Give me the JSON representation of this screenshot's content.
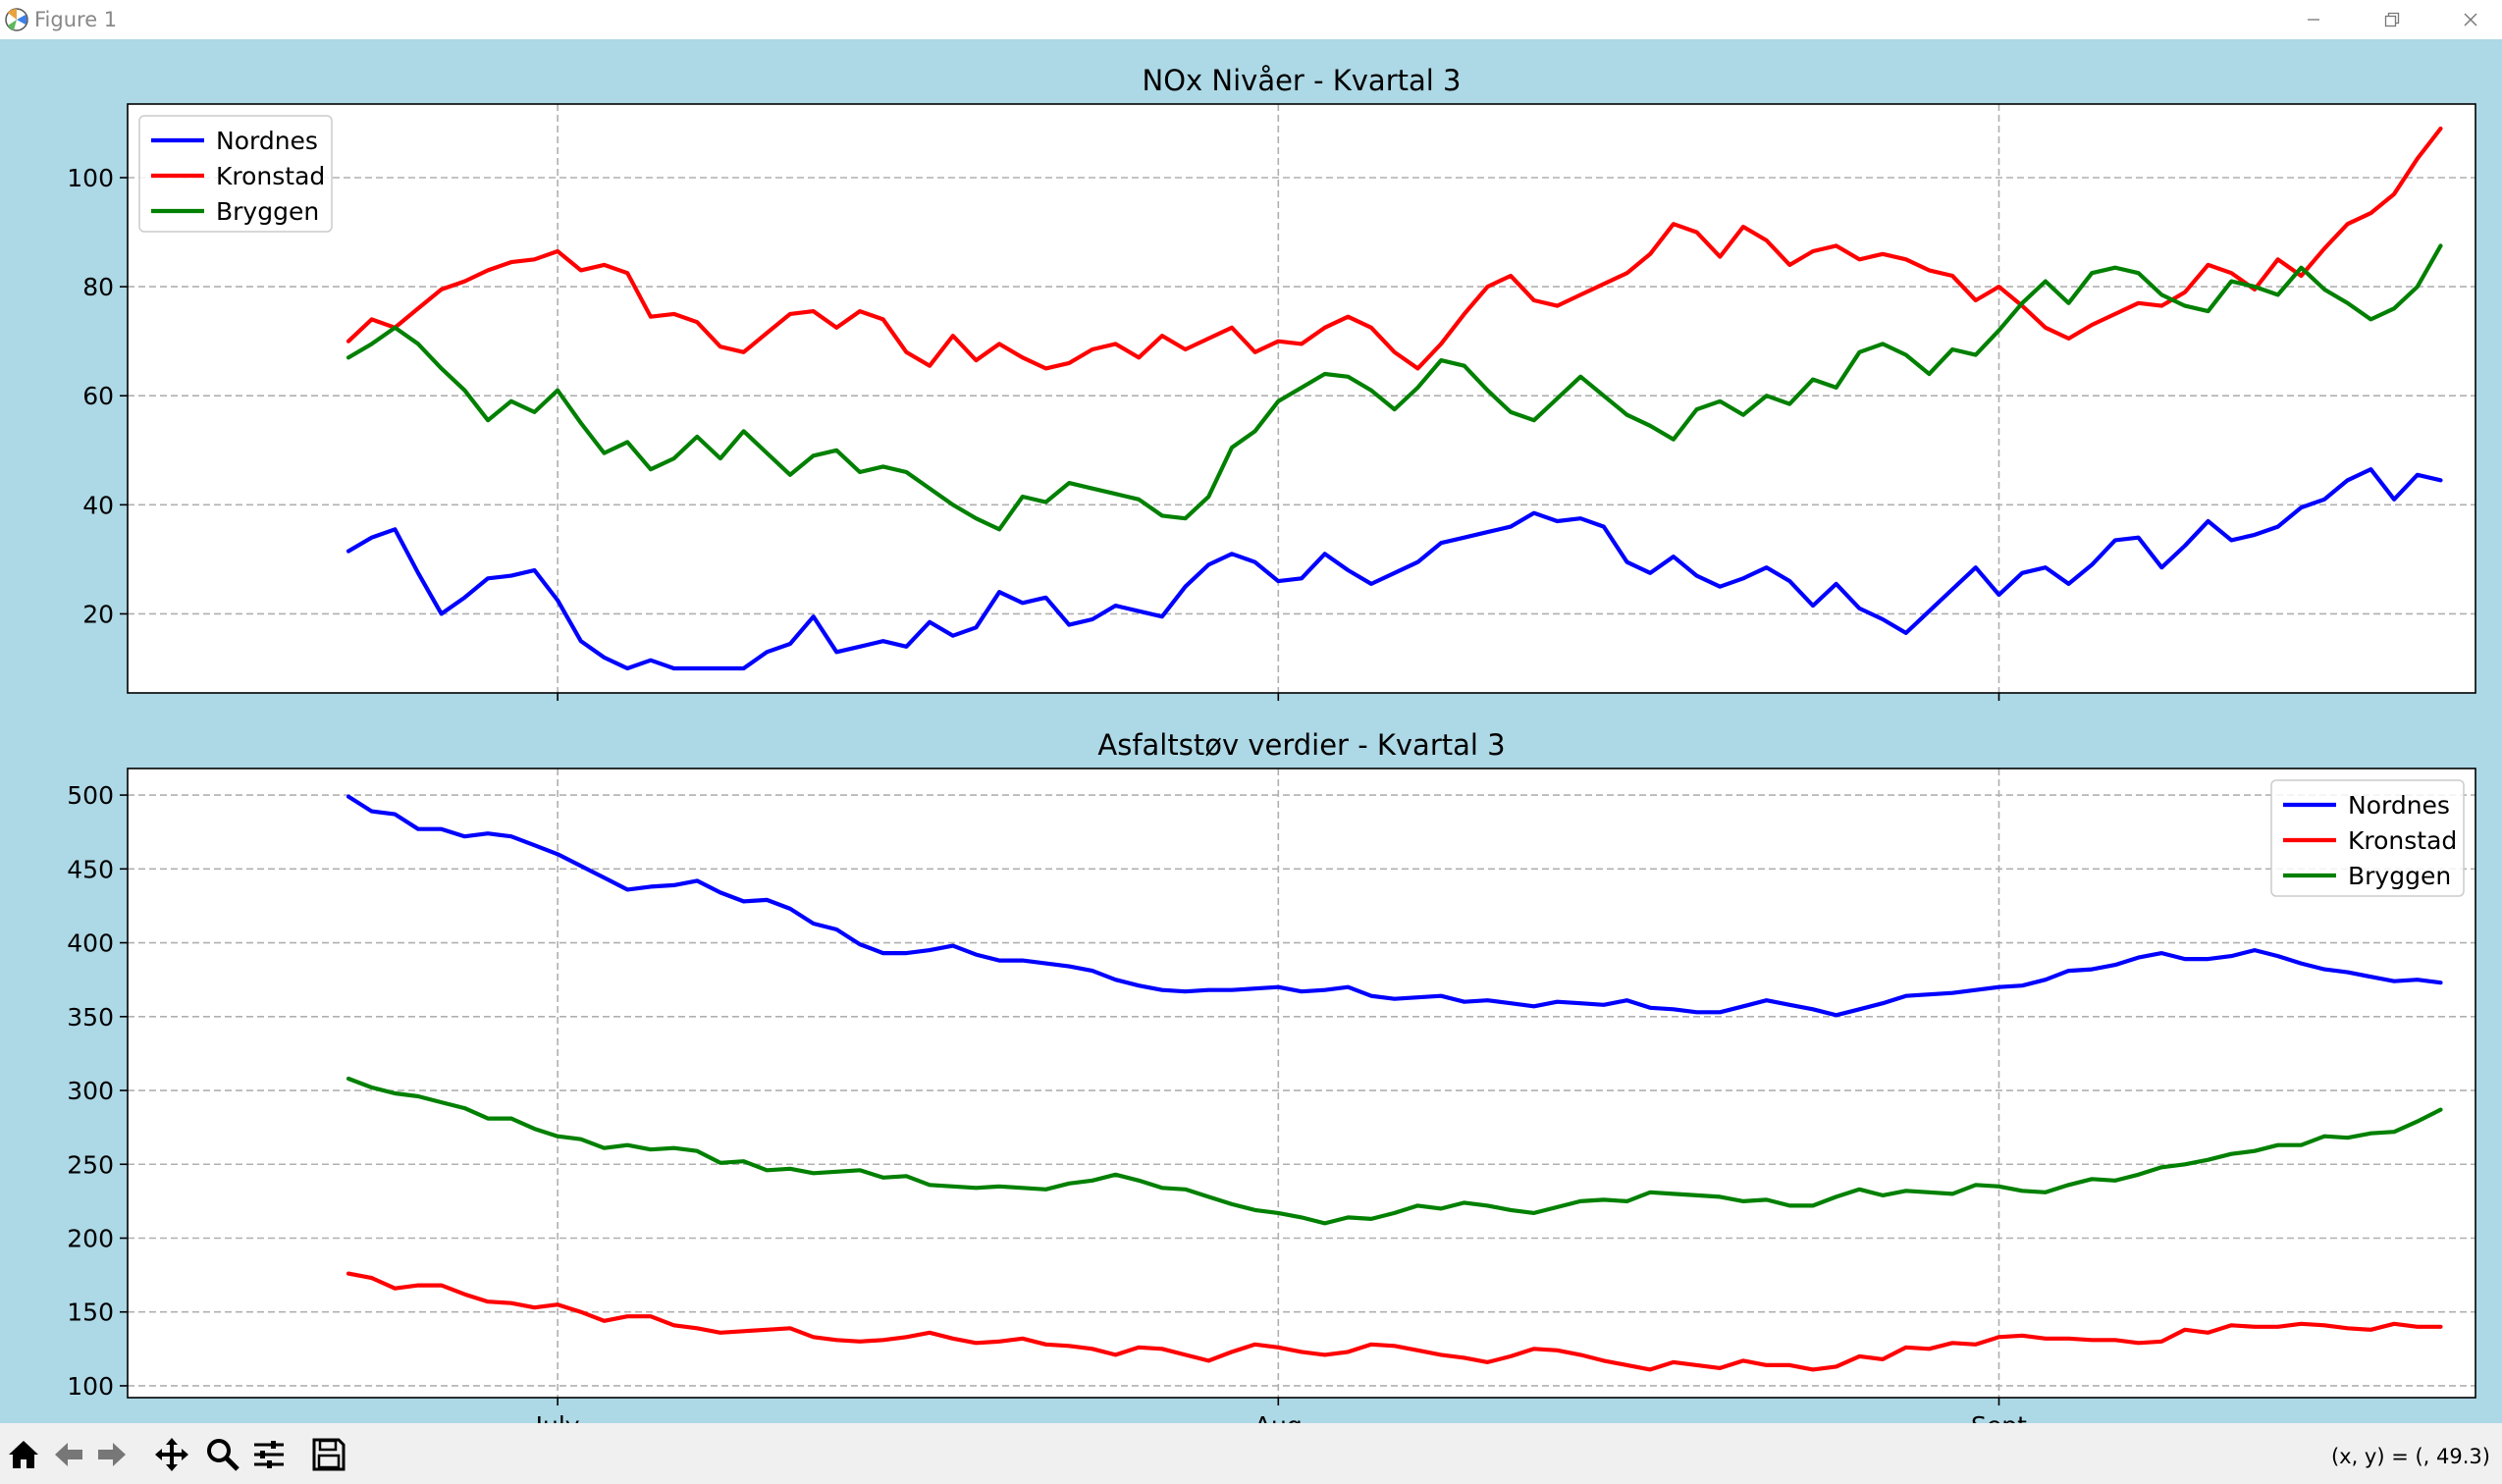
{
  "window": {
    "title": "Figure 1"
  },
  "toolbar": {
    "buttons": [
      "home-icon",
      "back-arrow-icon",
      "forward-arrow-icon",
      "pan-icon",
      "zoom-icon",
      "subplots-icon",
      "save-icon"
    ],
    "coords_text": "(x, y) = (, 49.3)"
  },
  "colors": {
    "figure_bg": "#add8e6",
    "Nordnes": "#0000ff",
    "Kronstad": "#ff0000",
    "Bryggen": "#008000"
  },
  "chart_data": [
    {
      "type": "line",
      "title": "NOx Nivåer - Kvartal 3",
      "xlabel": "",
      "ylabel": "",
      "x_unit": "day index from first point (dates not printed)",
      "xlim": [
        -9.5,
        91.5
      ],
      "ylim": [
        5.5,
        113.5
      ],
      "yticks": [
        20,
        40,
        60,
        80,
        100
      ],
      "xticks": [
        {
          "pos": 9,
          "label": "July"
        },
        {
          "pos": 40,
          "label": "Aug"
        },
        {
          "pos": 71,
          "label": "Sept"
        }
      ],
      "grid": true,
      "legend": "top-left",
      "series": [
        {
          "name": "Nordnes",
          "values": [
            31.5,
            34,
            35.5,
            27.5,
            20,
            23,
            26.5,
            27,
            28,
            22.5,
            15,
            12,
            10,
            11.5,
            10,
            10,
            10,
            10,
            13,
            14.5,
            19.5,
            13,
            14,
            15,
            14,
            18.5,
            16,
            17.5,
            24,
            22,
            23,
            18,
            19,
            21.5,
            20.5,
            19.5,
            25,
            29,
            31,
            29.5,
            26,
            26.5,
            31,
            28,
            25.5,
            27.5,
            29.5,
            33,
            34,
            35,
            36,
            38.5,
            37,
            37.5,
            36,
            29.5,
            27.5,
            30.5,
            27,
            25,
            26.5,
            28.5,
            26,
            21.5,
            25.5,
            21,
            19,
            16.5,
            20.5,
            24.5,
            28.5,
            23.5,
            27.5,
            28.5,
            25.5,
            29,
            33.5,
            34,
            28.5,
            32.5,
            37,
            33.5,
            34.5,
            36,
            39.5,
            41,
            44.5,
            46.5,
            41,
            45.5,
            44.5
          ]
        },
        {
          "name": "Kronstad",
          "values": [
            70,
            74,
            72.5,
            76,
            79.5,
            81,
            83,
            84.5,
            85,
            86.5,
            83,
            84,
            82.5,
            74.5,
            75,
            73.5,
            69,
            68,
            71.5,
            75,
            75.5,
            72.5,
            75.5,
            74,
            68,
            65.5,
            71,
            66.5,
            69.5,
            67,
            65,
            66,
            68.5,
            69.5,
            67,
            71,
            68.5,
            70.5,
            72.5,
            68,
            70,
            69.5,
            72.5,
            74.5,
            72.5,
            68,
            65,
            69.5,
            75,
            80,
            82,
            77.5,
            76.5,
            78.5,
            80.5,
            82.5,
            86,
            91.5,
            90,
            85.5,
            91,
            88.5,
            84,
            86.5,
            87.5,
            85,
            86,
            85,
            83,
            82,
            77.5,
            80,
            76.5,
            72.5,
            70.5,
            73,
            75,
            77,
            76.5,
            79,
            84,
            82.5,
            79.5,
            85,
            82,
            87,
            91.5,
            93.5,
            97,
            103.5,
            109
          ]
        },
        {
          "name": "Bryggen",
          "values": [
            67,
            69.5,
            72.5,
            69.5,
            65,
            61,
            55.5,
            59,
            57,
            61,
            55,
            49.5,
            51.5,
            46.5,
            48.5,
            52.5,
            48.5,
            53.5,
            49.5,
            45.5,
            49,
            50,
            46,
            47,
            46,
            43,
            40,
            37.5,
            35.5,
            41.5,
            40.5,
            44,
            43,
            42,
            41,
            38,
            37.5,
            41.5,
            50.5,
            53.5,
            59,
            61.5,
            64,
            63.5,
            61,
            57.5,
            61.5,
            66.5,
            65.5,
            61,
            57,
            55.5,
            59.5,
            63.5,
            60,
            56.5,
            54.5,
            52,
            57.5,
            59,
            56.5,
            60,
            58.5,
            63,
            61.5,
            68,
            69.5,
            67.5,
            64,
            68.5,
            67.5,
            72,
            77,
            81,
            77,
            82.5,
            83.5,
            82.5,
            78.5,
            76.5,
            75.5,
            81,
            80,
            78.5,
            83.5,
            79.5,
            77,
            74,
            76,
            80,
            87.5
          ]
        }
      ]
    },
    {
      "type": "line",
      "title": "Asfaltstøv verdier - Kvartal 3",
      "xlabel": "",
      "ylabel": "",
      "x_unit": "day index from first point (dates not printed)",
      "xlim": [
        -9.5,
        91.5
      ],
      "ylim": [
        92,
        518
      ],
      "yticks": [
        100,
        150,
        200,
        250,
        300,
        350,
        400,
        450,
        500
      ],
      "xticks": [
        {
          "pos": 9,
          "label": "July"
        },
        {
          "pos": 40,
          "label": "Aug"
        },
        {
          "pos": 71,
          "label": "Sept"
        }
      ],
      "grid": true,
      "legend": "top-right",
      "series": [
        {
          "name": "Nordnes",
          "values": [
            499,
            489,
            487,
            477,
            477,
            472,
            474,
            472,
            466,
            460,
            452,
            444,
            436,
            438,
            439,
            442,
            434,
            428,
            429,
            423,
            413,
            409,
            399,
            393,
            393,
            395,
            398,
            392,
            388,
            388,
            386,
            384,
            381,
            375,
            371,
            368,
            367,
            368,
            368,
            369,
            370,
            367,
            368,
            370,
            364,
            362,
            363,
            364,
            360,
            361,
            359,
            357,
            360,
            359,
            358,
            361,
            356,
            355,
            353,
            353,
            357,
            361,
            358,
            355,
            351,
            355,
            359,
            364,
            365,
            366,
            368,
            370,
            371,
            375,
            381,
            382,
            385,
            390,
            393,
            389,
            389,
            391,
            395,
            391,
            386,
            382,
            380,
            377,
            374,
            375,
            373
          ]
        },
        {
          "name": "Kronstad",
          "values": [
            176,
            173,
            166,
            168,
            168,
            162,
            157,
            156,
            153,
            155,
            150,
            144,
            147,
            147,
            141,
            139,
            136,
            137,
            138,
            139,
            133,
            131,
            130,
            131,
            133,
            136,
            132,
            129,
            130,
            132,
            128,
            127,
            125,
            121,
            126,
            125,
            121,
            117,
            123,
            128,
            126,
            123,
            121,
            123,
            128,
            127,
            124,
            121,
            119,
            116,
            120,
            125,
            124,
            121,
            117,
            114,
            111,
            116,
            114,
            112,
            117,
            114,
            114,
            111,
            113,
            120,
            118,
            126,
            125,
            129,
            128,
            133,
            134,
            132,
            132,
            131,
            131,
            129,
            130,
            138,
            136,
            141,
            140,
            140,
            142,
            141,
            139,
            138,
            142,
            140,
            140
          ]
        },
        {
          "name": "Bryggen",
          "values": [
            308,
            302,
            298,
            296,
            292,
            288,
            281,
            281,
            274,
            269,
            267,
            261,
            263,
            260,
            261,
            259,
            251,
            252,
            246,
            247,
            244,
            245,
            246,
            241,
            242,
            236,
            235,
            234,
            235,
            234,
            233,
            237,
            239,
            243,
            239,
            234,
            233,
            228,
            223,
            219,
            217,
            214,
            210,
            214,
            213,
            217,
            222,
            220,
            224,
            222,
            219,
            217,
            221,
            225,
            226,
            225,
            231,
            230,
            229,
            228,
            225,
            226,
            222,
            222,
            228,
            233,
            229,
            232,
            231,
            230,
            236,
            235,
            232,
            231,
            236,
            240,
            239,
            243,
            248,
            250,
            253,
            257,
            259,
            263,
            263,
            269,
            268,
            271,
            272,
            279,
            287
          ]
        }
      ]
    }
  ]
}
